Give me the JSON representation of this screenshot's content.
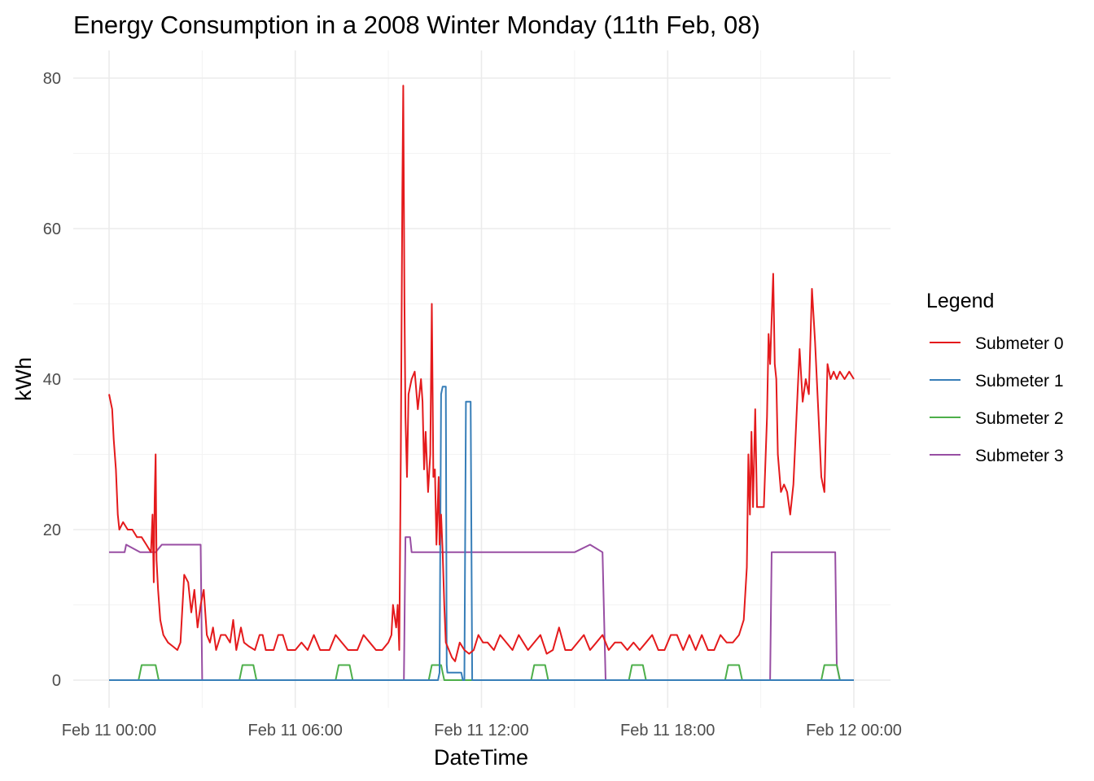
{
  "chart_data": {
    "type": "line",
    "title": "Energy Consumption in a 2008 Winter Monday (11th Feb, 08)",
    "xlabel": "DateTime",
    "ylabel": "kWh",
    "x_unit": "hours",
    "xlim": [
      0,
      24
    ],
    "ylim": [
      -3,
      83
    ],
    "x_ticks": [
      {
        "value": 0,
        "label": "Feb 11 00:00"
      },
      {
        "value": 6,
        "label": "Feb 11 06:00"
      },
      {
        "value": 12,
        "label": "Feb 11 12:00"
      },
      {
        "value": 18,
        "label": "Feb 11 18:00"
      },
      {
        "value": 24,
        "label": "Feb 12 00:00"
      }
    ],
    "y_ticks": [
      {
        "value": 0,
        "label": "0"
      },
      {
        "value": 20,
        "label": "20"
      },
      {
        "value": 40,
        "label": "40"
      },
      {
        "value": 60,
        "label": "60"
      },
      {
        "value": 80,
        "label": "80"
      }
    ],
    "grid": true,
    "legend": {
      "title": "Legend",
      "position": "right"
    },
    "series": [
      {
        "name": "Submeter 0",
        "color": "#E41A1C",
        "points": [
          [
            0.0,
            38
          ],
          [
            0.05,
            37
          ],
          [
            0.1,
            36
          ],
          [
            0.15,
            32
          ],
          [
            0.22,
            28
          ],
          [
            0.28,
            22
          ],
          [
            0.33,
            20
          ],
          [
            0.45,
            21
          ],
          [
            0.6,
            20
          ],
          [
            0.75,
            20
          ],
          [
            0.9,
            19
          ],
          [
            1.05,
            19
          ],
          [
            1.2,
            18
          ],
          [
            1.35,
            17
          ],
          [
            1.4,
            22
          ],
          [
            1.44,
            13
          ],
          [
            1.47,
            24
          ],
          [
            1.5,
            30
          ],
          [
            1.53,
            16
          ],
          [
            1.58,
            12
          ],
          [
            1.65,
            8
          ],
          [
            1.75,
            6
          ],
          [
            1.9,
            5
          ],
          [
            2.05,
            4.5
          ],
          [
            2.2,
            4
          ],
          [
            2.3,
            5
          ],
          [
            2.42,
            14
          ],
          [
            2.55,
            13
          ],
          [
            2.65,
            9
          ],
          [
            2.75,
            12
          ],
          [
            2.85,
            7
          ],
          [
            2.95,
            10
          ],
          [
            3.05,
            12
          ],
          [
            3.15,
            6
          ],
          [
            3.25,
            5
          ],
          [
            3.35,
            7
          ],
          [
            3.45,
            4
          ],
          [
            3.6,
            6
          ],
          [
            3.75,
            6
          ],
          [
            3.9,
            5
          ],
          [
            4.0,
            8
          ],
          [
            4.1,
            4
          ],
          [
            4.25,
            7
          ],
          [
            4.35,
            5
          ],
          [
            4.5,
            4.5
          ],
          [
            4.7,
            4
          ],
          [
            4.85,
            6
          ],
          [
            4.95,
            6
          ],
          [
            5.05,
            4
          ],
          [
            5.3,
            4
          ],
          [
            5.45,
            6
          ],
          [
            5.6,
            6
          ],
          [
            5.75,
            4
          ],
          [
            6.0,
            4
          ],
          [
            6.2,
            5
          ],
          [
            6.4,
            4
          ],
          [
            6.6,
            6
          ],
          [
            6.8,
            4
          ],
          [
            7.1,
            4
          ],
          [
            7.3,
            6
          ],
          [
            7.5,
            5
          ],
          [
            7.7,
            4
          ],
          [
            8.0,
            4
          ],
          [
            8.2,
            6
          ],
          [
            8.4,
            5
          ],
          [
            8.6,
            4
          ],
          [
            8.8,
            4
          ],
          [
            9.0,
            5
          ],
          [
            9.1,
            6
          ],
          [
            9.15,
            10
          ],
          [
            9.25,
            7
          ],
          [
            9.3,
            10
          ],
          [
            9.35,
            4
          ],
          [
            9.4,
            30
          ],
          [
            9.45,
            65
          ],
          [
            9.48,
            79
          ],
          [
            9.52,
            50
          ],
          [
            9.55,
            35
          ],
          [
            9.6,
            27
          ],
          [
            9.65,
            38
          ],
          [
            9.75,
            40
          ],
          [
            9.85,
            41
          ],
          [
            9.95,
            36
          ],
          [
            10.05,
            40
          ],
          [
            10.1,
            37
          ],
          [
            10.15,
            28
          ],
          [
            10.2,
            33
          ],
          [
            10.28,
            25
          ],
          [
            10.35,
            30
          ],
          [
            10.4,
            50
          ],
          [
            10.45,
            27
          ],
          [
            10.5,
            28
          ],
          [
            10.55,
            18
          ],
          [
            10.62,
            27
          ],
          [
            10.65,
            18
          ],
          [
            10.7,
            22
          ],
          [
            10.75,
            17
          ],
          [
            10.8,
            10
          ],
          [
            10.85,
            5
          ],
          [
            10.95,
            4
          ],
          [
            11.05,
            3
          ],
          [
            11.15,
            2.5
          ],
          [
            11.3,
            5
          ],
          [
            11.45,
            4
          ],
          [
            11.6,
            3.5
          ],
          [
            11.75,
            4
          ],
          [
            11.9,
            6
          ],
          [
            12.05,
            5
          ],
          [
            12.2,
            5
          ],
          [
            12.4,
            4
          ],
          [
            12.6,
            6
          ],
          [
            12.8,
            5
          ],
          [
            13.0,
            4
          ],
          [
            13.2,
            6
          ],
          [
            13.35,
            5
          ],
          [
            13.5,
            4
          ],
          [
            13.7,
            5
          ],
          [
            13.9,
            6
          ],
          [
            14.1,
            3.5
          ],
          [
            14.3,
            4
          ],
          [
            14.5,
            7
          ],
          [
            14.7,
            4
          ],
          [
            14.9,
            4
          ],
          [
            15.1,
            5
          ],
          [
            15.3,
            6
          ],
          [
            15.5,
            4
          ],
          [
            15.7,
            5
          ],
          [
            15.9,
            6
          ],
          [
            16.1,
            4
          ],
          [
            16.3,
            5
          ],
          [
            16.5,
            5
          ],
          [
            16.7,
            4
          ],
          [
            16.9,
            5
          ],
          [
            17.1,
            4
          ],
          [
            17.3,
            5
          ],
          [
            17.5,
            6
          ],
          [
            17.7,
            4
          ],
          [
            17.9,
            4
          ],
          [
            18.1,
            6
          ],
          [
            18.3,
            6
          ],
          [
            18.5,
            4
          ],
          [
            18.7,
            6
          ],
          [
            18.9,
            4
          ],
          [
            19.1,
            6
          ],
          [
            19.3,
            4
          ],
          [
            19.5,
            4
          ],
          [
            19.7,
            6
          ],
          [
            19.9,
            5
          ],
          [
            20.1,
            5
          ],
          [
            20.3,
            6
          ],
          [
            20.45,
            8
          ],
          [
            20.55,
            15
          ],
          [
            20.6,
            30
          ],
          [
            20.65,
            22
          ],
          [
            20.7,
            33
          ],
          [
            20.75,
            23
          ],
          [
            20.82,
            36
          ],
          [
            20.88,
            23
          ],
          [
            21.0,
            23
          ],
          [
            21.1,
            23
          ],
          [
            21.2,
            35
          ],
          [
            21.25,
            46
          ],
          [
            21.3,
            42
          ],
          [
            21.4,
            54
          ],
          [
            21.45,
            42
          ],
          [
            21.5,
            40
          ],
          [
            21.55,
            30
          ],
          [
            21.65,
            25
          ],
          [
            21.75,
            26
          ],
          [
            21.85,
            25
          ],
          [
            21.95,
            22
          ],
          [
            22.05,
            26
          ],
          [
            22.15,
            35
          ],
          [
            22.25,
            44
          ],
          [
            22.35,
            37
          ],
          [
            22.45,
            40
          ],
          [
            22.55,
            38
          ],
          [
            22.65,
            52
          ],
          [
            22.75,
            45
          ],
          [
            22.85,
            36
          ],
          [
            22.95,
            27
          ],
          [
            23.05,
            25
          ],
          [
            23.15,
            42
          ],
          [
            23.25,
            40
          ],
          [
            23.35,
            41
          ],
          [
            23.45,
            40
          ],
          [
            23.55,
            41
          ],
          [
            23.7,
            40
          ],
          [
            23.85,
            41
          ],
          [
            24.0,
            40
          ]
        ]
      },
      {
        "name": "Submeter 1",
        "color": "#377EB8",
        "points": [
          [
            0,
            0
          ],
          [
            10.6,
            0
          ],
          [
            10.65,
            1
          ],
          [
            10.7,
            38
          ],
          [
            10.75,
            39
          ],
          [
            10.8,
            39
          ],
          [
            10.85,
            39
          ],
          [
            10.88,
            2
          ],
          [
            10.9,
            1
          ],
          [
            11.0,
            1
          ],
          [
            11.1,
            1
          ],
          [
            11.2,
            1
          ],
          [
            11.35,
            1
          ],
          [
            11.4,
            0
          ],
          [
            11.45,
            0
          ],
          [
            11.5,
            37
          ],
          [
            11.55,
            37
          ],
          [
            11.62,
            37
          ],
          [
            11.65,
            37
          ],
          [
            11.7,
            0
          ],
          [
            24,
            0
          ]
        ]
      },
      {
        "name": "Submeter 2",
        "color": "#4DAF4A",
        "points": [
          [
            0,
            0
          ],
          [
            0.95,
            0
          ],
          [
            1.0,
            1
          ],
          [
            1.05,
            2
          ],
          [
            1.5,
            2
          ],
          [
            1.55,
            1
          ],
          [
            1.6,
            0
          ],
          [
            4.2,
            0
          ],
          [
            4.25,
            1
          ],
          [
            4.3,
            2
          ],
          [
            4.65,
            2
          ],
          [
            4.7,
            1
          ],
          [
            4.75,
            0
          ],
          [
            7.3,
            0
          ],
          [
            7.35,
            1
          ],
          [
            7.4,
            2
          ],
          [
            7.75,
            2
          ],
          [
            7.8,
            1
          ],
          [
            7.85,
            0
          ],
          [
            10.3,
            0
          ],
          [
            10.35,
            1
          ],
          [
            10.4,
            2
          ],
          [
            10.7,
            2
          ],
          [
            10.75,
            1
          ],
          [
            10.8,
            0
          ],
          [
            13.6,
            0
          ],
          [
            13.65,
            1
          ],
          [
            13.7,
            2
          ],
          [
            14.05,
            2
          ],
          [
            14.1,
            1
          ],
          [
            14.15,
            0
          ],
          [
            16.75,
            0
          ],
          [
            16.8,
            1
          ],
          [
            16.85,
            2
          ],
          [
            17.2,
            2
          ],
          [
            17.25,
            1
          ],
          [
            17.3,
            0
          ],
          [
            19.85,
            0
          ],
          [
            19.9,
            1
          ],
          [
            19.95,
            2
          ],
          [
            20.3,
            2
          ],
          [
            20.35,
            1
          ],
          [
            20.4,
            0
          ],
          [
            22.95,
            0
          ],
          [
            23.0,
            1
          ],
          [
            23.05,
            2
          ],
          [
            23.45,
            2
          ],
          [
            23.5,
            1
          ],
          [
            23.55,
            0
          ],
          [
            24,
            0
          ]
        ]
      },
      {
        "name": "Submeter 3",
        "color": "#984EA3",
        "points": [
          [
            0,
            17
          ],
          [
            0.5,
            17
          ],
          [
            0.55,
            18
          ],
          [
            1.0,
            17
          ],
          [
            1.5,
            17
          ],
          [
            1.7,
            18
          ],
          [
            2.0,
            18
          ],
          [
            2.5,
            18
          ],
          [
            2.95,
            18
          ],
          [
            3.0,
            0
          ],
          [
            9.5,
            0
          ],
          [
            9.55,
            19
          ],
          [
            9.7,
            19
          ],
          [
            9.75,
            17
          ],
          [
            10.5,
            17
          ],
          [
            11.0,
            17
          ],
          [
            12.0,
            17
          ],
          [
            13.0,
            17
          ],
          [
            14.0,
            17
          ],
          [
            14.5,
            17
          ],
          [
            15.0,
            17
          ],
          [
            15.5,
            18
          ],
          [
            15.9,
            17
          ],
          [
            16.0,
            0
          ],
          [
            21.3,
            0
          ],
          [
            21.35,
            17
          ],
          [
            22.0,
            17
          ],
          [
            22.5,
            17
          ],
          [
            23.0,
            17
          ],
          [
            23.4,
            17
          ],
          [
            23.45,
            2
          ],
          [
            23.55,
            0
          ],
          [
            24,
            0
          ]
        ]
      }
    ]
  }
}
